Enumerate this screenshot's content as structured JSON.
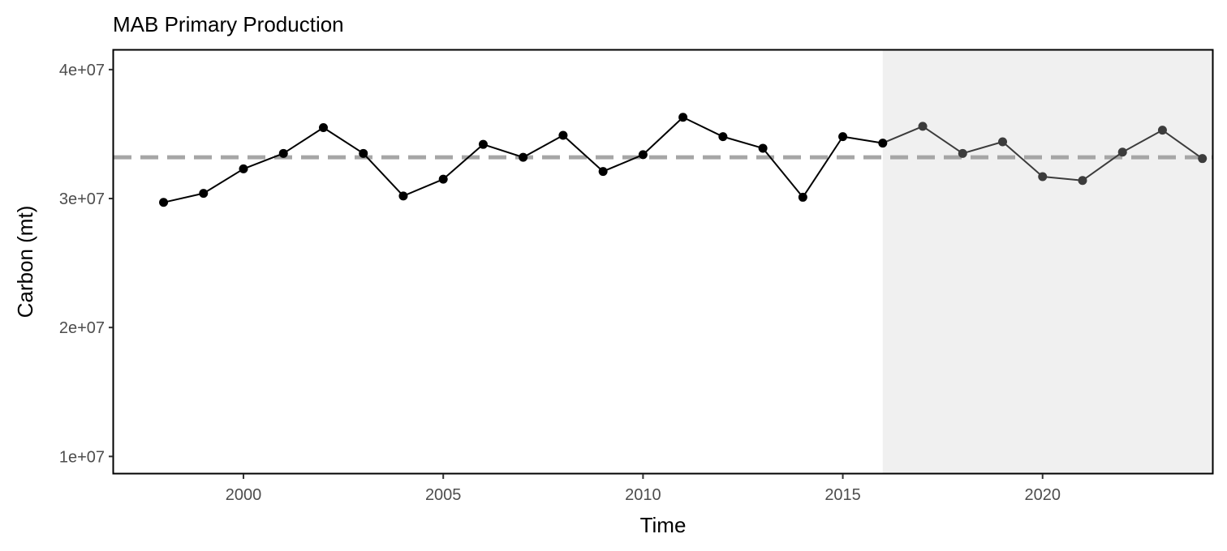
{
  "chart_data": {
    "type": "line",
    "title": "MAB Primary Production",
    "xlabel": "Time",
    "ylabel": "Carbon (mt)",
    "xlim": [
      1996.75,
      2024.25
    ],
    "ylim": [
      8700000,
      41500000
    ],
    "x_ticks": [
      2000,
      2005,
      2010,
      2015,
      2020
    ],
    "x_tick_labels": [
      "2000",
      "2005",
      "2010",
      "2015",
      "2020"
    ],
    "y_ticks": [
      10000000,
      20000000,
      30000000,
      40000000
    ],
    "y_tick_labels": [
      "1e+07",
      "2e+07",
      "3e+07",
      "4e+07"
    ],
    "grid": false,
    "highlight_region": {
      "x_start": 2016,
      "x_end": 2024.25,
      "color": "#f0f0f0"
    },
    "reference_line": {
      "y": 33200000,
      "style": "dashed",
      "color": "#a6a6a6"
    },
    "series": [
      {
        "x": [
          1998,
          1999,
          2000,
          2001,
          2002,
          2003,
          2004,
          2005,
          2006,
          2007,
          2008,
          2009,
          2010,
          2011,
          2012,
          2013,
          2014,
          2015,
          2016,
          2017,
          2018,
          2019,
          2020,
          2021,
          2022,
          2023,
          2024
        ],
        "values": [
          29700000,
          30400000,
          32300000,
          33500000,
          35500000,
          33500000,
          30200000,
          31500000,
          34200000,
          33200000,
          34900000,
          32100000,
          33400000,
          36300000,
          34800000,
          33900000,
          30100000,
          34800000,
          34300000,
          35600000,
          33500000,
          34400000,
          31700000,
          31400000,
          33600000,
          35300000,
          33100000
        ],
        "color": "#000000",
        "recent_color": "#3c3c3c",
        "recent_from": 2016
      }
    ]
  }
}
